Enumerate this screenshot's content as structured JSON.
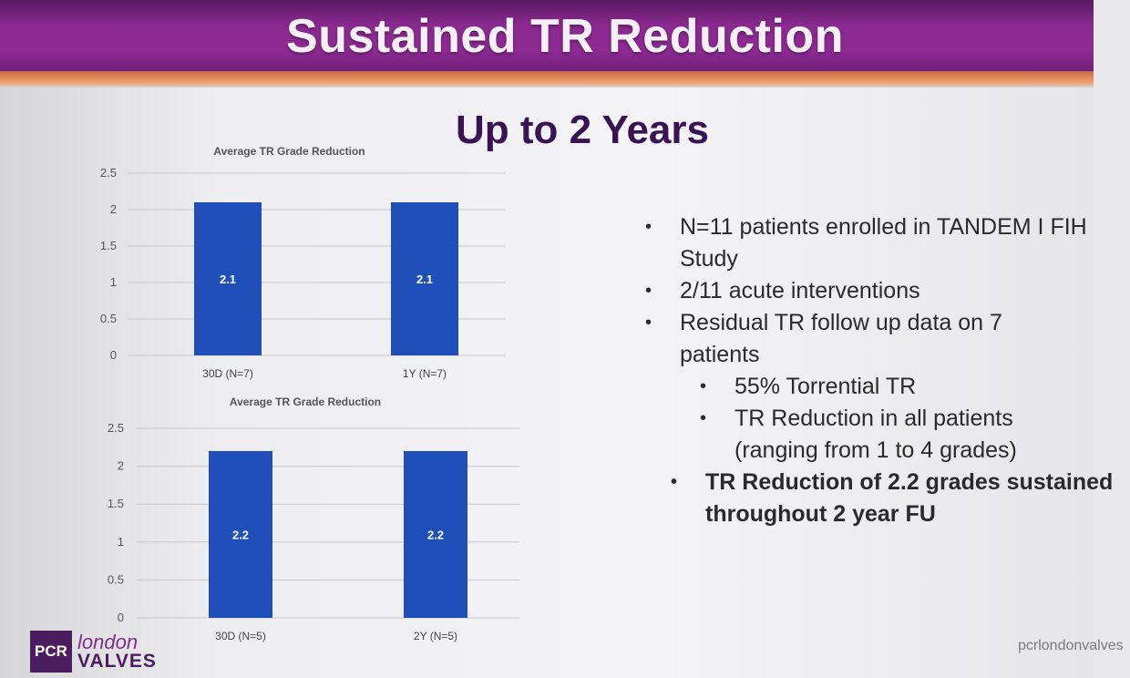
{
  "slide": {
    "title": "Sustained TR Reduction",
    "subtitle": "Up to 2 Years"
  },
  "chart_data": [
    {
      "type": "bar",
      "title": "Average TR Grade Reduction",
      "categories": [
        "30D (N=7)",
        "1Y (N=7)"
      ],
      "values": [
        2.1,
        2.1
      ],
      "data_labels": [
        "2.1",
        "2.1"
      ],
      "ylim": [
        0,
        2.5
      ],
      "yticks": [
        "0",
        "0.5",
        "1",
        "1.5",
        "2",
        "2.5"
      ],
      "grid": true,
      "bar_color": "#1f4fb8"
    },
    {
      "type": "bar",
      "title": "Average TR Grade Reduction",
      "categories": [
        "30D (N=5)",
        "2Y (N=5)"
      ],
      "values": [
        2.2,
        2.2
      ],
      "data_labels": [
        "2.2",
        "2.2"
      ],
      "ylim": [
        0,
        2.5
      ],
      "yticks": [
        "0",
        "0.5",
        "1",
        "1.5",
        "2",
        "2.5"
      ],
      "grid": true,
      "bar_color": "#1f4fb8"
    }
  ],
  "bullets": {
    "b1": "N=11 patients enrolled in TANDEM I FIH",
    "b1_cont": "Study",
    "b2": "2/11 acute interventions",
    "b3": "Residual TR follow up data on 7",
    "b3_cont": "patients",
    "b3a": "55% Torrential TR",
    "b3b": "TR Reduction in all patients",
    "b3b_cont": "(ranging from 1 to 4 grades)",
    "b4": "TR Reduction of 2.2 grades sustained",
    "b4_cont": "throughout 2 year FU",
    "marker": "•"
  },
  "logo": {
    "mark": "PCR",
    "line1": "london",
    "line2": "VALVES"
  },
  "footer": {
    "site": "pcrlondonvalves"
  }
}
